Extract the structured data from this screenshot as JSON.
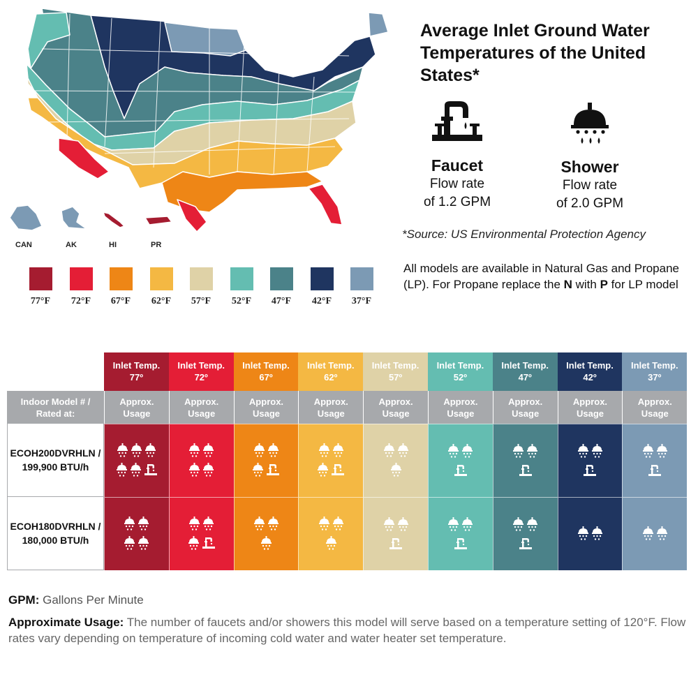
{
  "title": "Average Inlet Ground Water Temperatures of the United States*",
  "colors": {
    "t77": "#a51c30",
    "t72": "#e41e36",
    "t67": "#ee8616",
    "t62": "#f4b843",
    "t57": "#dfd2a7",
    "t52": "#64bdb1",
    "t47": "#4b8289",
    "t42": "#1f3560",
    "t37": "#7c9ab4"
  },
  "territories": [
    "CAN",
    "AK",
    "HI",
    "PR"
  ],
  "fixtures": {
    "faucet": {
      "name": "Faucet",
      "rate_line1": "Flow rate",
      "rate_line2": "of 1.2 GPM",
      "icon": "faucet-icon"
    },
    "shower": {
      "name": "Shower",
      "rate_line1": "Flow rate",
      "rate_line2": "of 2.0 GPM",
      "icon": "shower-icon"
    }
  },
  "source": "*Source: US Environmental Protection Agency",
  "models_note": {
    "text1": "All models are available in Natural Gas and Propane (LP). For Propane replace the ",
    "n": "N",
    "with": " with ",
    "p": "P",
    "text2": " for LP model"
  },
  "chart_data": {
    "type": "table",
    "title": "Average Inlet Ground Water Temperatures of the United States*",
    "legend": [
      {
        "label": "77°F",
        "color": "#a51c30"
      },
      {
        "label": "72°F",
        "color": "#e41e36"
      },
      {
        "label": "67°F",
        "color": "#ee8616"
      },
      {
        "label": "62°F",
        "color": "#f4b843"
      },
      {
        "label": "57°F",
        "color": "#dfd2a7"
      },
      {
        "label": "52°F",
        "color": "#64bdb1"
      },
      {
        "label": "47°F",
        "color": "#4b8289"
      },
      {
        "label": "42°F",
        "color": "#1f3560"
      },
      {
        "label": "37°F",
        "color": "#7c9ab4"
      }
    ],
    "header_prefix": "Inlet Temp.",
    "columns": [
      "77º",
      "72º",
      "67º",
      "62º",
      "57º",
      "52º",
      "47º",
      "42º",
      "37º"
    ],
    "column_colors": [
      "#a51c30",
      "#e41e36",
      "#ee8616",
      "#f4b843",
      "#dfd2a7",
      "#64bdb1",
      "#4b8289",
      "#1f3560",
      "#7c9ab4"
    ],
    "row_header_label_1": "Indoor Model # /",
    "row_header_label_2": "Rated at:",
    "usage_label_1": "Approx.",
    "usage_label_2": "Usage",
    "series": [
      {
        "name": "ECOH200DVRHLN /",
        "rating": "199,900 BTU/h",
        "showers": [
          5,
          4,
          3,
          3,
          3,
          2,
          2,
          2,
          2
        ],
        "faucets": [
          1,
          0,
          1,
          1,
          0,
          1,
          1,
          1,
          1
        ]
      },
      {
        "name": "ECOH180DVRHLN /",
        "rating": "180,000 BTU/h",
        "showers": [
          4,
          3,
          3,
          3,
          2,
          2,
          2,
          2,
          2
        ],
        "faucets": [
          0,
          1,
          0,
          0,
          1,
          1,
          1,
          0,
          0
        ]
      }
    ]
  },
  "footnotes": {
    "gpm_term": "GPM:",
    "gpm_def": " Gallons Per Minute",
    "usage_term": "Approximate Usage:",
    "usage_def": " The number of faucets and/or showers this model will serve based on a temperature setting of 120°F. Flow rates vary depending on temperature of incoming cold water and water heater set temperature."
  }
}
